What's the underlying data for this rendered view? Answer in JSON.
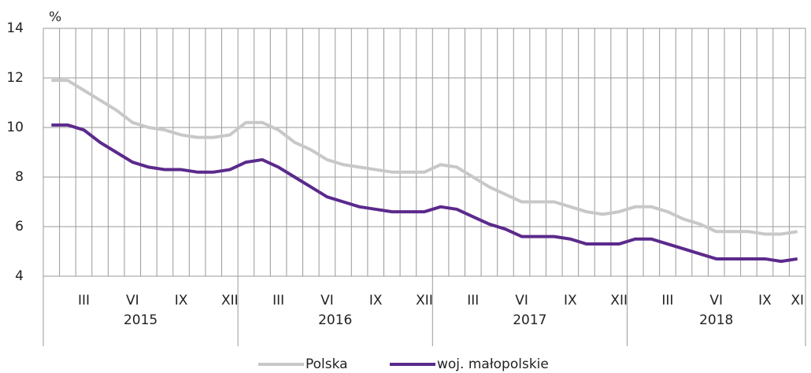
{
  "chart_data": {
    "type": "line",
    "y_unit": "%",
    "categories": [
      null,
      null,
      "III",
      null,
      null,
      "VI",
      null,
      null,
      "IX",
      null,
      null,
      "XII",
      null,
      null,
      "III",
      null,
      null,
      "VI",
      null,
      null,
      "IX",
      null,
      null,
      "XII",
      null,
      null,
      "III",
      null,
      null,
      "VI",
      null,
      null,
      "IX",
      null,
      null,
      "XII",
      null,
      null,
      "III",
      null,
      null,
      "VI",
      null,
      null,
      "IX",
      null,
      "XI"
    ],
    "year_groups": [
      "2015",
      "2016",
      "2017",
      "2018"
    ],
    "series": [
      {
        "name": "Polska",
        "color": "#c8c8c8",
        "values": [
          11.9,
          11.9,
          11.5,
          11.1,
          10.7,
          10.2,
          10.0,
          9.9,
          9.7,
          9.6,
          9.6,
          9.7,
          10.2,
          10.2,
          9.9,
          9.4,
          9.1,
          8.7,
          8.5,
          8.4,
          8.3,
          8.2,
          8.2,
          8.2,
          8.5,
          8.4,
          8.0,
          7.6,
          7.3,
          7.0,
          7.0,
          7.0,
          6.8,
          6.6,
          6.5,
          6.6,
          6.8,
          6.8,
          6.6,
          6.3,
          6.1,
          5.8,
          5.8,
          5.8,
          5.7,
          5.7,
          5.8
        ]
      },
      {
        "name": "woj. małopolskie",
        "color": "#5b2a8c",
        "values": [
          10.1,
          10.1,
          9.9,
          9.4,
          9.0,
          8.6,
          8.4,
          8.3,
          8.3,
          8.2,
          8.2,
          8.3,
          8.6,
          8.7,
          8.4,
          8.0,
          7.6,
          7.2,
          7.0,
          6.8,
          6.7,
          6.6,
          6.6,
          6.6,
          6.8,
          6.7,
          6.4,
          6.1,
          5.9,
          5.6,
          5.6,
          5.6,
          5.5,
          5.3,
          5.3,
          5.3,
          5.5,
          5.5,
          5.3,
          5.1,
          4.9,
          4.7,
          4.7,
          4.7,
          4.7,
          4.6,
          4.7
        ]
      }
    ],
    "ylim": [
      4,
      14
    ],
    "yticks": [
      4,
      6,
      8,
      10,
      12,
      14
    ],
    "grid": true
  }
}
